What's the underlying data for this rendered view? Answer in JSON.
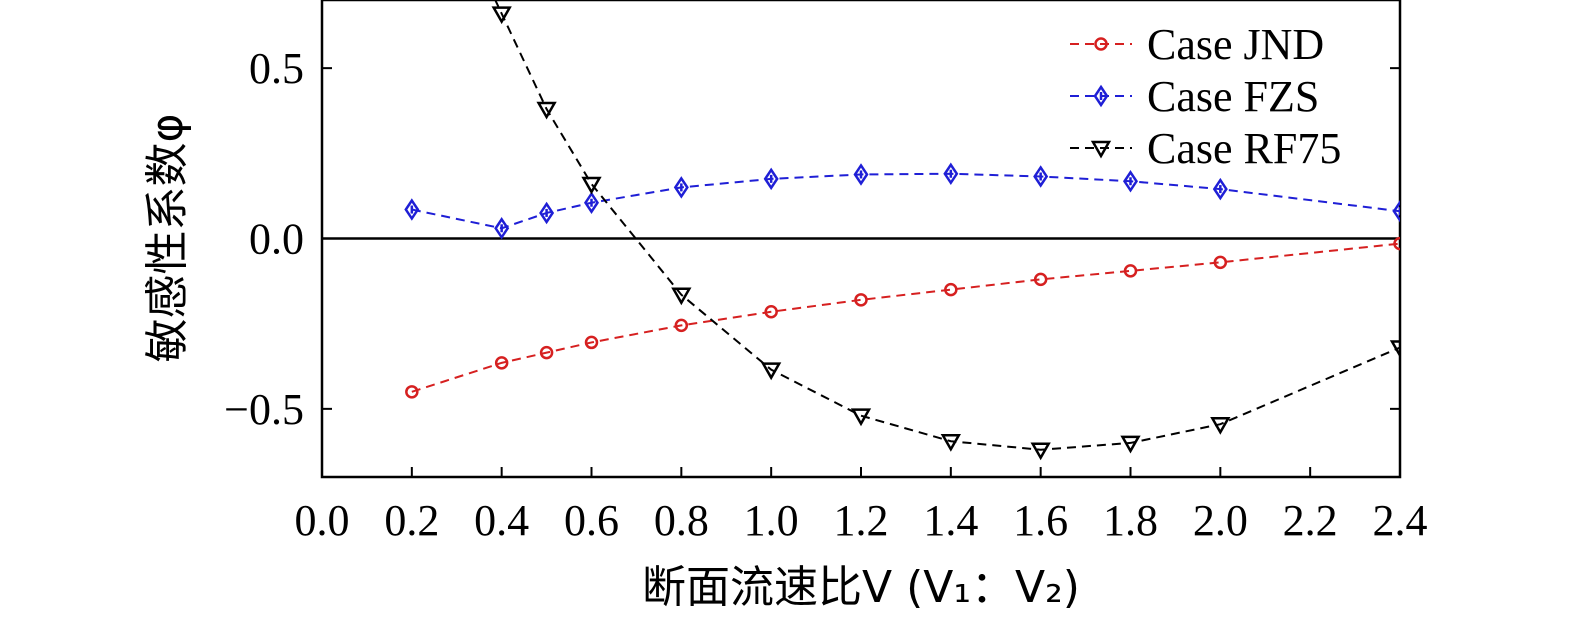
{
  "chart_data": {
    "type": "line",
    "title": "",
    "xlabel": "断面流速比V (V₁：V₂)",
    "ylabel": "敏感性系数φ",
    "xlim": [
      0.0,
      2.4
    ],
    "ylim": [
      -0.7,
      0.7
    ],
    "xticks": [
      "0.0",
      "0.2",
      "0.4",
      "0.6",
      "0.8",
      "1.0",
      "1.2",
      "1.4",
      "1.6",
      "1.8",
      "2.0",
      "2.2",
      "2.4"
    ],
    "yticks": [
      "−0.5",
      "0.0",
      "0.5"
    ],
    "zero_line": true,
    "grid": false,
    "legend_position": "top-right",
    "series": [
      {
        "name": "Case JND",
        "color": "#d62020",
        "marker": "circle",
        "x": [
          0.2,
          0.4,
          0.5,
          0.6,
          0.8,
          1.0,
          1.2,
          1.4,
          1.6,
          1.8,
          2.0,
          2.4
        ],
        "y": [
          -0.45,
          -0.365,
          -0.335,
          -0.305,
          -0.255,
          -0.215,
          -0.18,
          -0.15,
          -0.12,
          -0.095,
          -0.07,
          -0.015
        ]
      },
      {
        "name": "Case FZS",
        "color": "#1f1fd6",
        "marker": "diamond",
        "x": [
          0.2,
          0.4,
          0.5,
          0.6,
          0.8,
          1.0,
          1.2,
          1.4,
          1.6,
          1.8,
          2.0,
          2.4
        ],
        "y": [
          0.085,
          0.03,
          0.075,
          0.105,
          0.15,
          0.175,
          0.188,
          0.19,
          0.182,
          0.168,
          0.145,
          0.08
        ]
      },
      {
        "name": "Case RF75",
        "color": "#000000",
        "marker": "triangle-down",
        "x": [
          0.4,
          0.5,
          0.6,
          0.8,
          1.0,
          1.2,
          1.4,
          1.6,
          1.8,
          2.0,
          2.4
        ],
        "y": [
          0.66,
          0.38,
          0.16,
          -0.165,
          -0.385,
          -0.52,
          -0.595,
          -0.62,
          -0.6,
          -0.545,
          -0.32
        ]
      }
    ]
  }
}
